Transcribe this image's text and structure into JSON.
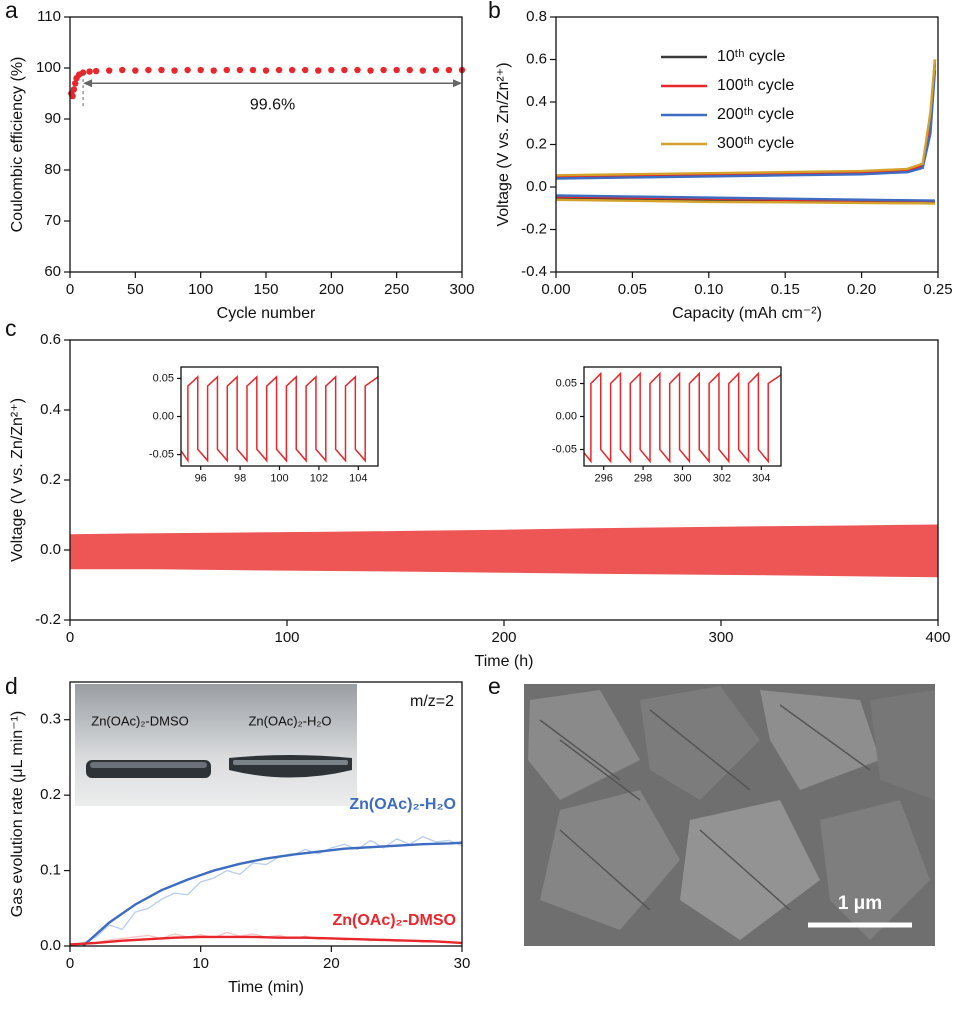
{
  "panel_labels": [
    "a",
    "b",
    "c",
    "d",
    "e"
  ],
  "image": {
    "scale_bar": "1 μm"
  },
  "chart_data": [
    {
      "type": "scatter",
      "xlabel": "Cycle number",
      "ylabel": "Coulombic efficiency (%)",
      "annotation": "99.6%",
      "color": "#e8262b",
      "x": [
        1,
        2,
        3,
        4,
        5,
        7,
        10,
        15,
        20,
        30,
        40,
        50,
        60,
        70,
        80,
        90,
        100,
        110,
        120,
        130,
        140,
        150,
        160,
        170,
        180,
        190,
        200,
        210,
        220,
        230,
        240,
        250,
        260,
        270,
        280,
        290,
        300
      ],
      "values": [
        95,
        94.5,
        95.8,
        97,
        98,
        98.7,
        99.1,
        99.3,
        99.4,
        99.5,
        99.6,
        99.5,
        99.6,
        99.6,
        99.5,
        99.6,
        99.6,
        99.5,
        99.6,
        99.6,
        99.6,
        99.5,
        99.6,
        99.6,
        99.6,
        99.5,
        99.6,
        99.6,
        99.6,
        99.5,
        99.6,
        99.6,
        99.6,
        99.5,
        99.6,
        99.6,
        99.6
      ],
      "xlim": [
        0,
        300
      ],
      "xticks": [
        0,
        50,
        100,
        150,
        200,
        250,
        300
      ],
      "ylim": [
        60,
        110
      ],
      "yticks": [
        60,
        70,
        80,
        90,
        100,
        110
      ]
    },
    {
      "type": "line",
      "xlabel": "Capacity (mAh cm⁻²)",
      "ylabel": "Voltage (V vs. Zn/Zn²⁺)",
      "legend": "top",
      "xlim": [
        0,
        0.25
      ],
      "xticks": [
        {
          "value": 0,
          "label": "0.00"
        },
        0.05,
        {
          "value": 0.1,
          "label": "0.10"
        },
        0.15,
        {
          "value": 0.2,
          "label": "0.20"
        },
        0.25
      ],
      "ylim": [
        -0.4,
        0.8
      ],
      "yticks": [
        -0.4,
        -0.2,
        {
          "value": 0,
          "label": "0.0"
        },
        0.2,
        0.4,
        0.6,
        0.8
      ],
      "series": [
        {
          "name": "10ᵗʰ cycle",
          "color": "#3a3a3a",
          "x": [
            0,
            0.05,
            0.1,
            0.15,
            0.2,
            0.24,
            0.248,
            0,
            0,
            0.05,
            0.1,
            0.15,
            0.2,
            0.23,
            0.24,
            0.245,
            0.248
          ],
          "values": [
            -0.05,
            -0.055,
            -0.06,
            -0.062,
            -0.065,
            -0.066,
            -0.067,
            null,
            0.045,
            0.05,
            0.055,
            0.06,
            0.065,
            0.075,
            0.1,
            0.3,
            0.6
          ]
        },
        {
          "name": "100ᵗʰ cycle",
          "color": "#e8262b",
          "x": [
            0,
            0.05,
            0.1,
            0.15,
            0.2,
            0.24,
            0.248,
            0,
            0,
            0.05,
            0.1,
            0.15,
            0.2,
            0.23,
            0.24,
            0.245,
            0.248
          ],
          "values": [
            -0.045,
            -0.05,
            -0.055,
            -0.06,
            -0.063,
            -0.065,
            -0.066,
            null,
            0.05,
            0.055,
            0.06,
            0.063,
            0.068,
            0.078,
            0.1,
            0.3,
            0.58
          ]
        },
        {
          "name": "200ᵗʰ cycle",
          "color": "#3d6cc0",
          "x": [
            0,
            0.05,
            0.1,
            0.15,
            0.2,
            0.24,
            0.248,
            0,
            0,
            0.05,
            0.1,
            0.15,
            0.2,
            0.23,
            0.24,
            0.245,
            0.248
          ],
          "values": [
            -0.04,
            -0.045,
            -0.05,
            -0.055,
            -0.06,
            -0.063,
            -0.064,
            null,
            0.04,
            0.045,
            0.05,
            0.055,
            0.06,
            0.07,
            0.09,
            0.25,
            0.55
          ]
        },
        {
          "name": "300ᵗʰ cycle",
          "color": "#d4a22a",
          "x": [
            0,
            0.05,
            0.1,
            0.15,
            0.2,
            0.24,
            0.248,
            0,
            0,
            0.05,
            0.1,
            0.15,
            0.2,
            0.23,
            0.24,
            0.245,
            0.248
          ],
          "values": [
            -0.06,
            -0.065,
            -0.07,
            -0.072,
            -0.075,
            -0.077,
            -0.078,
            null,
            0.055,
            0.06,
            0.065,
            0.07,
            0.075,
            0.085,
            0.11,
            0.35,
            0.6
          ]
        }
      ]
    },
    {
      "type": "area",
      "xlabel": "Time (h)",
      "ylabel": "Voltage (V vs. Zn/Zn²⁺)",
      "color": "#ee5555",
      "x": [
        0,
        40,
        80,
        120,
        160,
        200,
        240,
        280,
        320,
        360,
        400
      ],
      "series": [
        {
          "values": [
            0.045,
            0.048,
            0.05,
            0.052,
            0.055,
            0.058,
            0.062,
            0.065,
            0.068,
            0.07,
            0.073
          ]
        },
        {
          "values": [
            -0.055,
            -0.055,
            -0.058,
            -0.06,
            -0.062,
            -0.065,
            -0.068,
            -0.07,
            -0.072,
            -0.075,
            -0.078
          ]
        }
      ],
      "xlim": [
        0,
        400
      ],
      "xticks": [
        0,
        100,
        200,
        300,
        400
      ],
      "ylim": [
        -0.2,
        0.6
      ],
      "yticks": [
        -0.2,
        {
          "value": 0,
          "label": "0.0"
        },
        0.2,
        0.4,
        0.6
      ]
    },
    {
      "type": "line",
      "xlim": [
        95,
        105
      ],
      "xticks": [
        96,
        98,
        100,
        102,
        104
      ],
      "ylim": [
        -0.065,
        0.065
      ],
      "yticks": [
        -0.05,
        {
          "value": 0,
          "label": "0.00"
        },
        0.05
      ],
      "series": [
        {
          "color": "#e8262b",
          "x": [
            95,
            95.35,
            95.35,
            95.85,
            95.85,
            96.35,
            96.35,
            96.85,
            96.85,
            97.35,
            97.35,
            97.85,
            97.85,
            98.35,
            98.35,
            98.85,
            98.85,
            99.35,
            99.35,
            99.85,
            99.85,
            100.35,
            100.35,
            100.85,
            100.85,
            101.35,
            101.35,
            101.85,
            101.85,
            102.35,
            102.35,
            102.85,
            102.85,
            103.35,
            103.35,
            103.85,
            103.85,
            104.35,
            104.35,
            105
          ],
          "values": [
            -0.045,
            -0.058,
            0.04,
            0.052,
            -0.043,
            -0.058,
            0.04,
            0.052,
            -0.043,
            -0.058,
            0.04,
            0.052,
            -0.043,
            -0.058,
            0.04,
            0.052,
            -0.043,
            -0.058,
            0.04,
            0.052,
            -0.043,
            -0.058,
            0.04,
            0.052,
            -0.043,
            -0.058,
            0.04,
            0.052,
            -0.043,
            -0.058,
            0.04,
            0.052,
            -0.043,
            -0.058,
            0.04,
            0.052,
            -0.043,
            -0.058,
            0.04,
            0.052
          ]
        }
      ]
    },
    {
      "type": "line",
      "xlim": [
        295,
        305
      ],
      "xticks": [
        296,
        298,
        300,
        302,
        304
      ],
      "ylim": [
        -0.075,
        0.075
      ],
      "yticks": [
        -0.05,
        {
          "value": 0,
          "label": "0.00"
        },
        0.05
      ],
      "series": [
        {
          "color": "#e8262b",
          "x": [
            295,
            295.35,
            295.35,
            295.85,
            295.85,
            296.35,
            296.35,
            296.85,
            296.85,
            297.35,
            297.35,
            297.85,
            297.85,
            298.35,
            298.35,
            298.85,
            298.85,
            299.35,
            299.35,
            299.85,
            299.85,
            300.35,
            300.35,
            300.85,
            300.85,
            301.35,
            301.35,
            301.85,
            301.85,
            302.35,
            302.35,
            302.85,
            302.85,
            303.35,
            303.35,
            303.85,
            303.85,
            304.35,
            304.35,
            305
          ],
          "values": [
            -0.055,
            -0.068,
            0.05,
            0.065,
            -0.05,
            -0.068,
            0.05,
            0.065,
            -0.05,
            -0.068,
            0.05,
            0.065,
            -0.05,
            -0.068,
            0.05,
            0.065,
            -0.05,
            -0.068,
            0.05,
            0.065,
            -0.05,
            -0.068,
            0.05,
            0.065,
            -0.05,
            -0.068,
            0.05,
            0.065,
            -0.05,
            -0.068,
            0.05,
            0.065,
            -0.05,
            -0.068,
            0.05,
            0.065,
            -0.05,
            -0.068,
            0.05,
            0.063
          ]
        }
      ]
    },
    {
      "type": "line",
      "xlabel": "Time (min)",
      "ylabel": "Gas evolution rate (μL min⁻¹)",
      "annotation": "m/z=2",
      "photo_labels": [
        "Zn(OAc)₂-DMSO",
        "Zn(OAc)₂-H₂O"
      ],
      "xlim": [
        0,
        30
      ],
      "xticks": [
        0,
        10,
        20,
        30
      ],
      "ylim": [
        0,
        0.35
      ],
      "yticks": [
        {
          "value": 0,
          "label": "0.0"
        },
        0.1,
        0.2,
        0.3
      ],
      "series": [
        {
          "color": "#b9cdee",
          "x": [
            0,
            1,
            2,
            3,
            4,
            5,
            6,
            7,
            8,
            9,
            10,
            11,
            12,
            13,
            14,
            15,
            16,
            17,
            18,
            19,
            20,
            21,
            22,
            23,
            24,
            25,
            26,
            27,
            28,
            29,
            30
          ],
          "values": [
            0.002,
            0.004,
            0.012,
            0.028,
            0.022,
            0.045,
            0.05,
            0.062,
            0.07,
            0.068,
            0.085,
            0.09,
            0.1,
            0.095,
            0.11,
            0.108,
            0.118,
            0.12,
            0.128,
            0.122,
            0.13,
            0.135,
            0.128,
            0.14,
            0.13,
            0.142,
            0.135,
            0.145,
            0.138,
            0.14,
            0.133
          ]
        },
        {
          "color": "#f6c6c6",
          "x": [
            0,
            1,
            2,
            3,
            4,
            5,
            6,
            7,
            8,
            9,
            10,
            11,
            12,
            13,
            14,
            15,
            16,
            17,
            18,
            19,
            20,
            21,
            22,
            23,
            24,
            25,
            26,
            27,
            28,
            29,
            30
          ],
          "values": [
            0.002,
            0.003,
            0.005,
            0.008,
            0.01,
            0.012,
            0.014,
            0.01,
            0.016,
            0.012,
            0.015,
            0.011,
            0.018,
            0.013,
            0.016,
            0.012,
            0.014,
            0.01,
            0.013,
            0.009,
            0.011,
            0.008,
            0.01,
            0.007,
            0.009,
            0.006,
            0.008,
            0.005,
            0.006,
            0.005,
            0.004
          ]
        },
        {
          "name": "Zn(OAc)₂-H₂O",
          "color": "#3d6cc0",
          "x": [
            1,
            3,
            5,
            7,
            9,
            11,
            13,
            15,
            17,
            19,
            21,
            23,
            25,
            27,
            29,
            30
          ],
          "values": [
            0,
            0.031,
            0.055,
            0.074,
            0.088,
            0.1,
            0.109,
            0.116,
            0.121,
            0.125,
            0.129,
            0.131,
            0.133,
            0.135,
            0.136,
            0.137
          ]
        },
        {
          "name": "Zn(OAc)₂-DMSO",
          "color": "#e8262b",
          "x": [
            0,
            2,
            4,
            6,
            8,
            10,
            12,
            14,
            16,
            18,
            20,
            22,
            24,
            26,
            28,
            30
          ],
          "values": [
            0.002,
            0.004,
            0.007,
            0.009,
            0.011,
            0.012,
            0.012,
            0.012,
            0.011,
            0.011,
            0.01,
            0.009,
            0.008,
            0.007,
            0.006,
            0.004
          ]
        }
      ]
    }
  ]
}
